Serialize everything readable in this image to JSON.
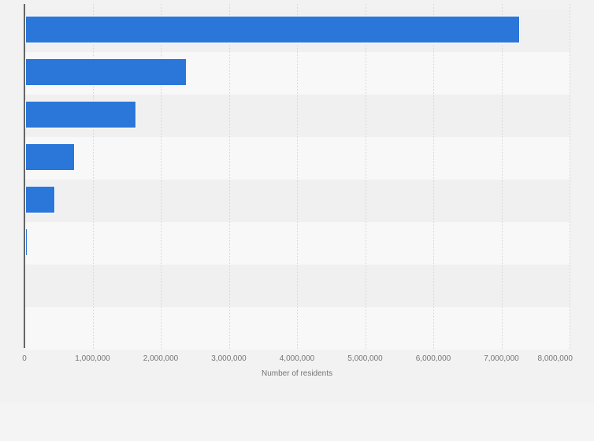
{
  "chart_data": {
    "type": "bar",
    "orientation": "horizontal",
    "title": "",
    "xlabel": "Number of residents",
    "ylabel": "",
    "categories": [
      "",
      "",
      "",
      "",
      "",
      "",
      "",
      ""
    ],
    "values": [
      7270000,
      2370000,
      1640000,
      730000,
      440000,
      35000,
      0,
      0
    ],
    "xlim": [
      0,
      8000000
    ],
    "x_ticks": [
      {
        "value": 0,
        "label": "0"
      },
      {
        "value": 1000000,
        "label": "1,000,000"
      },
      {
        "value": 2000000,
        "label": "2,000,000"
      },
      {
        "value": 3000000,
        "label": "3,000,000"
      },
      {
        "value": 4000000,
        "label": "4,000,000"
      },
      {
        "value": 5000000,
        "label": "5,000,000"
      },
      {
        "value": 6000000,
        "label": "6,000,000"
      },
      {
        "value": 7000000,
        "label": "7,000,000"
      },
      {
        "value": 8000000,
        "label": "8,000,000"
      }
    ],
    "grid": "vertical-dashed",
    "legend": "none",
    "plot_bands": "alternating-horizontal"
  },
  "colors": {
    "page_bg": "#f2f2f2",
    "footer_bg": "#f4f4f4",
    "stripe_dark": "#f0f0f0",
    "stripe_light": "#f8f8f8",
    "gridline": "#d9d9d9",
    "axis_line": "#666666",
    "bar": "#2b76d9",
    "bar_border": "#ffffff",
    "tick_text": "#767676",
    "axis_title_text": "#757575"
  }
}
